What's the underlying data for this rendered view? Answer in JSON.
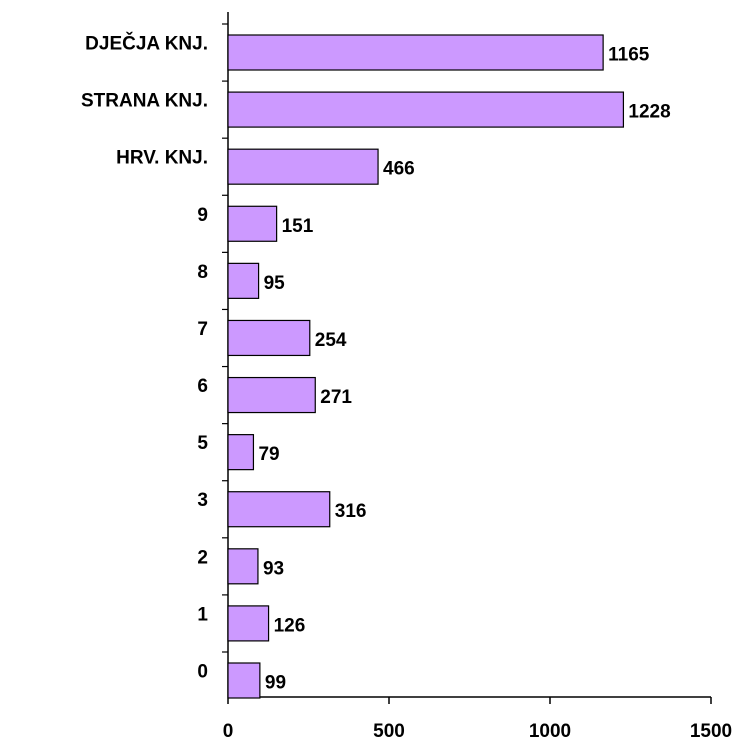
{
  "chart_data": {
    "type": "bar",
    "orientation": "horizontal",
    "categories": [
      "DJEČJA KNJ.",
      "STRANA KNJ.",
      "HRV. KNJ.",
      "9",
      "8",
      "7",
      "6",
      "5",
      "3",
      "2",
      "1",
      "0"
    ],
    "values": [
      1165,
      1228,
      466,
      151,
      95,
      254,
      271,
      79,
      316,
      93,
      126,
      99
    ],
    "color": "#cc99ff",
    "xlim": [
      0,
      1500
    ],
    "xticks": [
      0,
      500,
      1000,
      1500
    ],
    "grid": false
  }
}
